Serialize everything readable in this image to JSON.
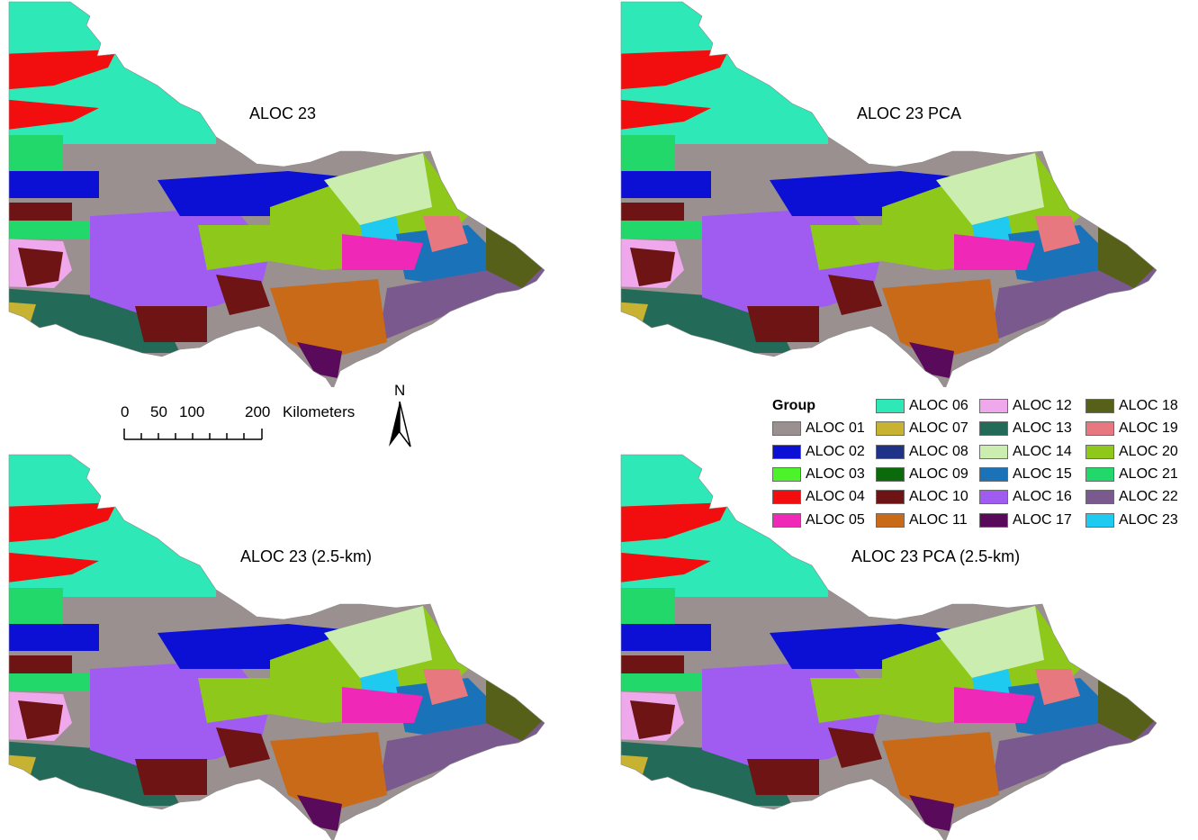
{
  "panels": [
    {
      "title": "ALOC 23"
    },
    {
      "title": "ALOC 23 PCA"
    },
    {
      "title": "ALOC 23 (2.5-km)"
    },
    {
      "title": "ALOC 23 PCA (2.5-km)"
    }
  ],
  "scale": {
    "ticks": [
      "0",
      "50",
      "100",
      "200"
    ],
    "unit": "Kilometers"
  },
  "north_arrow": {
    "label": "N"
  },
  "legend": {
    "title": "Group",
    "items": [
      {
        "label": "ALOC 01",
        "color": "#9b9090"
      },
      {
        "label": "ALOC 02",
        "color": "#0c10d4"
      },
      {
        "label": "ALOC 03",
        "color": "#4cf22a"
      },
      {
        "label": "ALOC 04",
        "color": "#f20e0e"
      },
      {
        "label": "ALOC 05",
        "color": "#f028b8"
      },
      {
        "label": "ALOC 06",
        "color": "#2ee8b8"
      },
      {
        "label": "ALOC 07",
        "color": "#c8b232"
      },
      {
        "label": "ALOC 08",
        "color": "#1e3288"
      },
      {
        "label": "ALOC 09",
        "color": "#0a6a0c"
      },
      {
        "label": "ALOC 10",
        "color": "#6e1414"
      },
      {
        "label": "ALOC 11",
        "color": "#c86a18"
      },
      {
        "label": "ALOC 12",
        "color": "#f0a8ec"
      },
      {
        "label": "ALOC 13",
        "color": "#246a58"
      },
      {
        "label": "ALOC 14",
        "color": "#cbeeb0"
      },
      {
        "label": "ALOC 15",
        "color": "#1a72b8"
      },
      {
        "label": "ALOC 16",
        "color": "#a05cf0"
      },
      {
        "label": "ALOC 17",
        "color": "#5a0a5a"
      },
      {
        "label": "ALOC 18",
        "color": "#566018"
      },
      {
        "label": "ALOC 19",
        "color": "#e87880"
      },
      {
        "label": "ALOC 20",
        "color": "#8ec81a"
      },
      {
        "label": "ALOC 21",
        "color": "#22d86a"
      },
      {
        "label": "ALOC 22",
        "color": "#7a5a8e"
      },
      {
        "label": "ALOC 23",
        "color": "#1ecaf0"
      }
    ]
  }
}
